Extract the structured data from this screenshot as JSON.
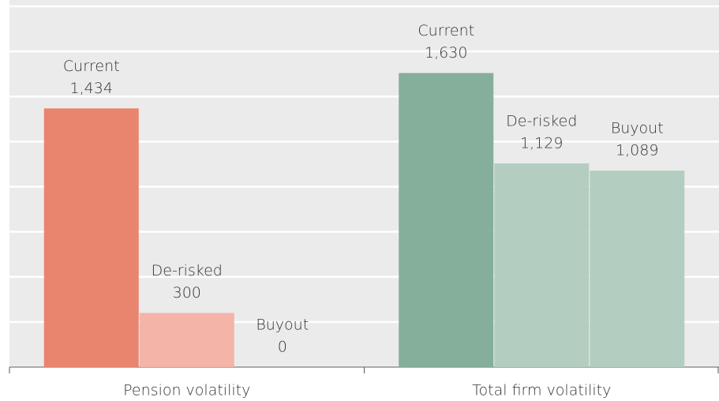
{
  "chart_data": {
    "type": "bar",
    "categories": [
      "Pension volatility",
      "Total firm volatility"
    ],
    "series": [
      {
        "name": "Current",
        "colors": [
          "#e9846f",
          "#85ae9b"
        ],
        "values": [
          1434,
          1630
        ],
        "value_labels": [
          "1,434",
          "1,630"
        ]
      },
      {
        "name": "De-risked",
        "colors": [
          "#f4b4a8",
          "#b3cec1"
        ],
        "values": [
          300,
          1129
        ],
        "value_labels": [
          "300",
          "1,129"
        ]
      },
      {
        "name": "Buyout",
        "colors": [
          "#f4b4a8",
          "#b3cec1"
        ],
        "values": [
          0,
          1089
        ],
        "value_labels": [
          "0",
          "1,089"
        ]
      }
    ],
    "ylim": [
      0,
      2000
    ],
    "yticks": [
      0,
      250,
      500,
      750,
      1000,
      1250,
      1500,
      1750,
      2000
    ],
    "grid": true
  }
}
